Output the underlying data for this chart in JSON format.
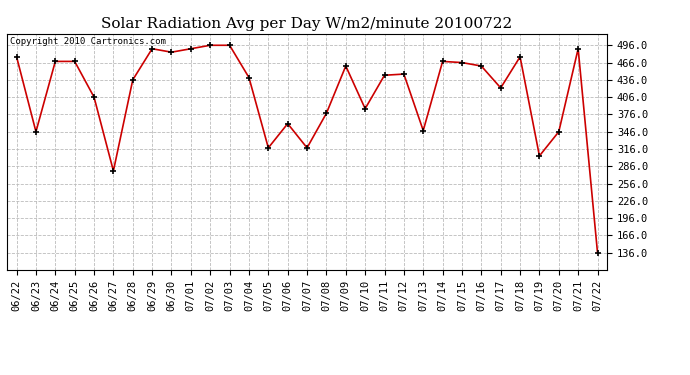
{
  "title": "Solar Radiation Avg per Day W/m2/minute 20100722",
  "copyright_text": "Copyright 2010 Cartronics.com",
  "labels": [
    "06/22",
    "06/23",
    "06/24",
    "06/25",
    "06/26",
    "06/27",
    "06/28",
    "06/29",
    "06/30",
    "07/01",
    "07/02",
    "07/03",
    "07/04",
    "07/05",
    "07/06",
    "07/07",
    "07/08",
    "07/09",
    "07/10",
    "07/11",
    "07/12",
    "07/13",
    "07/14",
    "07/15",
    "07/16",
    "07/17",
    "07/18",
    "07/19",
    "07/20",
    "07/21",
    "07/22"
  ],
  "values": [
    476,
    346,
    468,
    468,
    406,
    278,
    436,
    490,
    484,
    490,
    496,
    496,
    440,
    318,
    360,
    318,
    378,
    460,
    386,
    444,
    446,
    348,
    468,
    466,
    460,
    422,
    476,
    304,
    346,
    490,
    136
  ],
  "line_color": "#cc0000",
  "marker_color": "#000000",
  "background_color": "#ffffff",
  "grid_color": "#bbbbbb",
  "ylim_min": 106,
  "ylim_max": 516,
  "ytick_start": 136,
  "ytick_end": 496,
  "ytick_step": 30,
  "title_fontsize": 11,
  "tick_label_fontsize": 7.5,
  "copyright_fontsize": 6.5
}
